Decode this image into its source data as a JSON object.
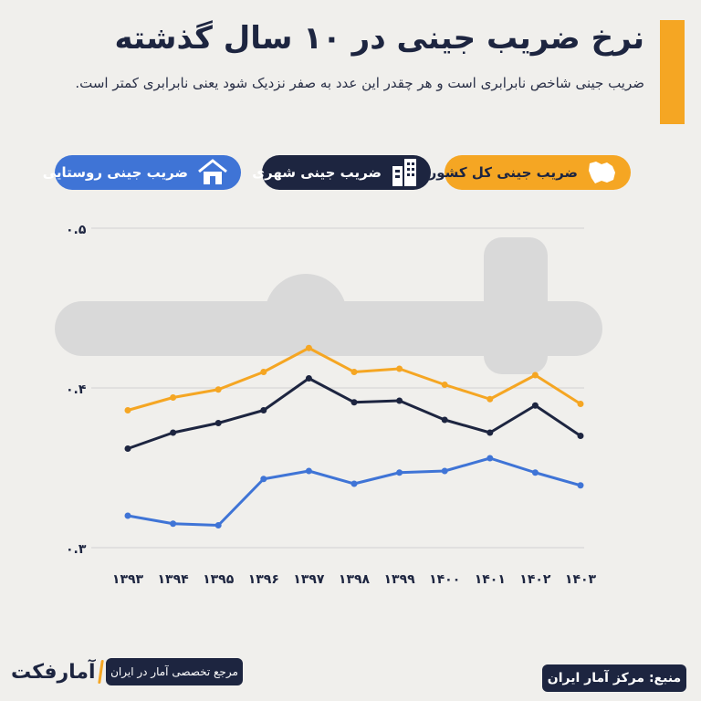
{
  "header": {
    "title": "نرخ ضریب جینی در ۱۰ سال گذشته",
    "subtitle": "ضریب جینی شاخص نابرابری است و هر چقدر این عدد به صفر نزدیک شود یعنی نابرابری کمتر است."
  },
  "legend": {
    "national": "ضریب جینی کل کشور",
    "urban": "ضریب جینی شهری",
    "rural": "ضریب جینی روستایی"
  },
  "colors": {
    "national": "#f5a623",
    "urban": "#1d2540",
    "rural": "#3f74d6",
    "grid": "#d2d2d2",
    "accent": "#f5a623"
  },
  "chart_data": {
    "type": "line",
    "x": [
      "۱۳۹۳",
      "۱۳۹۴",
      "۱۳۹۵",
      "۱۳۹۶",
      "۱۳۹۷",
      "۱۳۹۸",
      "۱۳۹۹",
      "۱۴۰۰",
      "۱۴۰۱",
      "۱۴۰۲",
      "۱۴۰۳"
    ],
    "series": [
      {
        "name": "ضریب جینی کل کشور",
        "color": "#f5a623",
        "values": [
          0.386,
          0.394,
          0.399,
          0.41,
          0.425,
          0.41,
          0.412,
          0.402,
          0.393,
          0.408,
          0.39
        ]
      },
      {
        "name": "ضریب جینی شهری",
        "color": "#1d2540",
        "values": [
          0.362,
          0.372,
          0.378,
          0.386,
          0.406,
          0.391,
          0.392,
          0.38,
          0.372,
          0.389,
          0.37
        ]
      },
      {
        "name": "ضریب جینی روستایی",
        "color": "#3f74d6",
        "values": [
          0.32,
          0.315,
          0.314,
          0.343,
          0.348,
          0.34,
          0.347,
          0.348,
          0.356,
          0.347,
          0.339
        ]
      }
    ],
    "yticks": [
      "۰.۵",
      "۰.۴",
      "۰.۳"
    ],
    "ytick_values": [
      0.5,
      0.4,
      0.3
    ],
    "ylim": [
      0.3,
      0.5
    ],
    "grid": true,
    "legend_position": "top"
  },
  "footer": {
    "source": "منبع: مرکز آمار ایران",
    "reference": "مرجع تخصصی آمار در ایران",
    "brand": "آمارفکت"
  }
}
